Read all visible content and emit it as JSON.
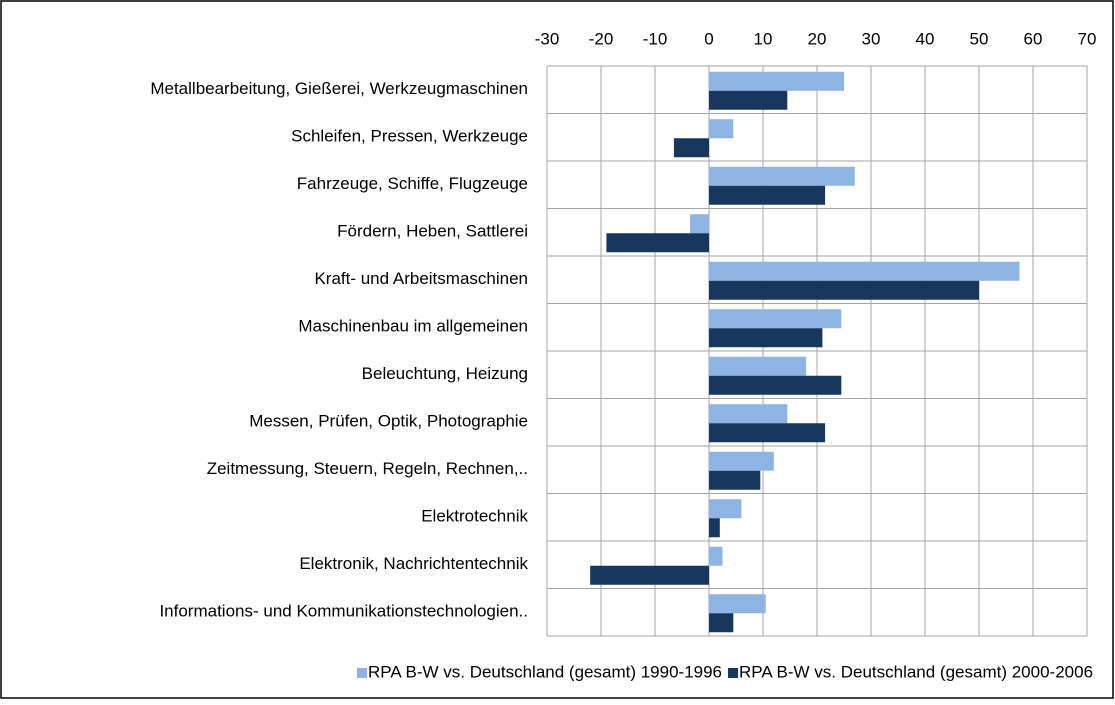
{
  "chart_data": {
    "type": "bar",
    "orientation": "horizontal",
    "categories": [
      "Metallbearbeitung, Gießerei, Werkzeugmaschinen",
      "Schleifen, Pressen, Werkzeuge",
      "Fahrzeuge, Schiffe, Flugzeuge",
      "Fördern, Heben, Sattlerei",
      "Kraft- und Arbeitsmaschinen",
      "Maschinenbau im allgemeinen",
      "Beleuchtung, Heizung",
      "Messen, Prüfen, Optik, Photographie",
      "Zeitmessung, Steuern, Regeln, Rechnen,..",
      "Elektrotechnik",
      "Elektronik, Nachrichtentechnik",
      "Informations- und Kommunikationstechnologien.."
    ],
    "series": [
      {
        "name": "RPA B-W vs. Deutschland (gesamt) 1990-1996",
        "color": "#8db4e2",
        "values": [
          25,
          4.5,
          27,
          -3.5,
          57.5,
          24.5,
          18,
          14.5,
          12,
          6,
          2.5,
          10.5
        ]
      },
      {
        "name": "RPA B-W vs. Deutschland (gesamt) 2000-2006",
        "color": "#17375e",
        "values": [
          14.5,
          -6.5,
          21.5,
          -19,
          50,
          21,
          24.5,
          21.5,
          9.5,
          2,
          -22,
          4.5
        ]
      }
    ],
    "xlim": [
      -30,
      70
    ],
    "xticks": [
      -30,
      -20,
      -10,
      0,
      10,
      20,
      30,
      40,
      50,
      60,
      70
    ],
    "grid": true,
    "legend": "bottom"
  }
}
